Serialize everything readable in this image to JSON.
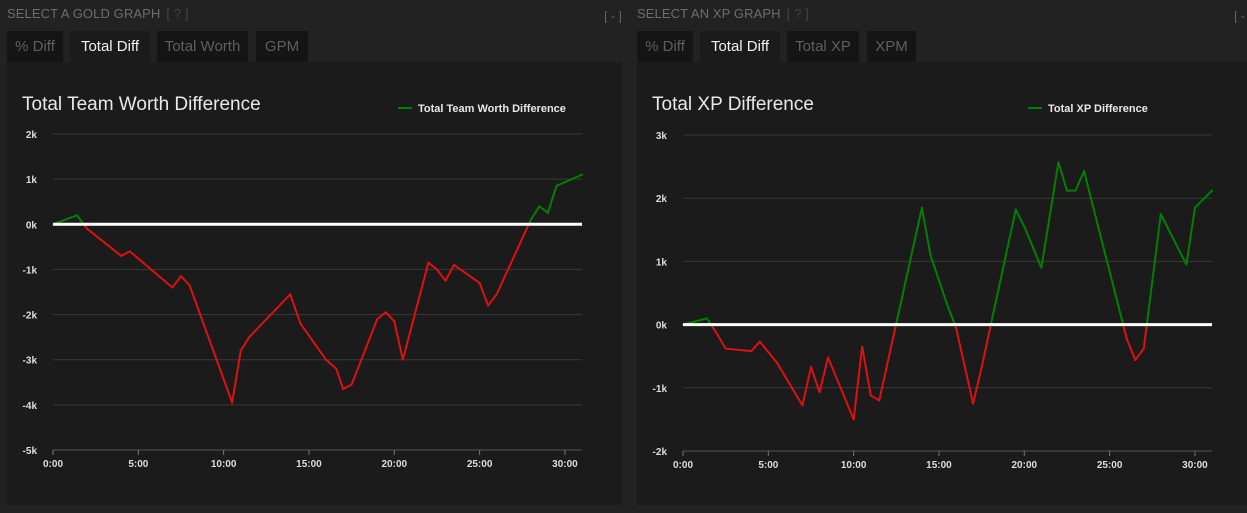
{
  "panels": [
    {
      "header": "SELECT A GOLD GRAPH",
      "help": "[ ? ]",
      "collapse": "[ - ]",
      "tabs": [
        {
          "label": "% Diff",
          "active": false
        },
        {
          "label": "Total Diff",
          "active": true
        },
        {
          "label": "Total Worth",
          "active": false
        },
        {
          "label": "GPM",
          "active": false
        }
      ]
    },
    {
      "header": "SELECT AN XP GRAPH",
      "help": "[ ? ]",
      "collapse": "[ - ]",
      "tabs": [
        {
          "label": "% Diff",
          "active": false
        },
        {
          "label": "Total Diff",
          "active": true
        },
        {
          "label": "Total XP",
          "active": false
        },
        {
          "label": "XPM",
          "active": false
        }
      ]
    }
  ],
  "colors": {
    "positive": "#008000",
    "negative": "#dd1111",
    "zero_line": "#ffffff",
    "grid": "#3a3a3a"
  },
  "chart_data": [
    {
      "type": "line",
      "title": "Total Team Worth Difference",
      "legend": "Total Team Worth Difference",
      "legend_position": "top-right",
      "ylim": [
        -5000,
        2000
      ],
      "xlim": [
        0,
        31
      ],
      "y_ticks": [
        {
          "v": 2000,
          "label": "2k"
        },
        {
          "v": 1000,
          "label": "1k"
        },
        {
          "v": 0,
          "label": "0k"
        },
        {
          "v": -1000,
          "label": "-1k"
        },
        {
          "v": -2000,
          "label": "-2k"
        },
        {
          "v": -3000,
          "label": "-3k"
        },
        {
          "v": -4000,
          "label": "-4k"
        },
        {
          "v": -5000,
          "label": "-5k"
        }
      ],
      "x_ticks": [
        {
          "v": 0,
          "label": "0:00"
        },
        {
          "v": 5,
          "label": "5:00"
        },
        {
          "v": 10,
          "label": "10:00"
        },
        {
          "v": 15,
          "label": "15:00"
        },
        {
          "v": 20,
          "label": "20:00"
        },
        {
          "v": 25,
          "label": "25:00"
        },
        {
          "v": 30,
          "label": "30:00"
        }
      ],
      "grid": true,
      "x": [
        0,
        1.4,
        2,
        4,
        4.5,
        7,
        7.5,
        8,
        10.5,
        11,
        11.5,
        13.9,
        14.5,
        16,
        16.6,
        17,
        17.5,
        19,
        19.5,
        20,
        20.5,
        22,
        22.5,
        23,
        23.5,
        25,
        25.5,
        26,
        28,
        28.5,
        29,
        29.5,
        31
      ],
      "y": [
        0,
        200,
        -100,
        -700,
        -600,
        -1400,
        -1150,
        -1350,
        -3950,
        -2800,
        -2500,
        -1550,
        -2200,
        -3000,
        -3200,
        -3650,
        -3550,
        -2100,
        -1950,
        -2150,
        -3000,
        -850,
        -1000,
        -1250,
        -900,
        -1300,
        -1800,
        -1550,
        100,
        400,
        250,
        850,
        1100
      ]
    },
    {
      "type": "line",
      "title": "Total XP Difference",
      "legend": "Total XP Difference",
      "legend_position": "top-right",
      "ylim": [
        -2000,
        3000
      ],
      "xlim": [
        0,
        31
      ],
      "y_ticks": [
        {
          "v": 3000,
          "label": "3k"
        },
        {
          "v": 2000,
          "label": "2k"
        },
        {
          "v": 1000,
          "label": "1k"
        },
        {
          "v": 0,
          "label": "0k"
        },
        {
          "v": -1000,
          "label": "-1k"
        },
        {
          "v": -2000,
          "label": "-2k"
        }
      ],
      "x_ticks": [
        {
          "v": 0,
          "label": "0:00"
        },
        {
          "v": 5,
          "label": "5:00"
        },
        {
          "v": 10,
          "label": "10:00"
        },
        {
          "v": 15,
          "label": "15:00"
        },
        {
          "v": 20,
          "label": "20:00"
        },
        {
          "v": 25,
          "label": "25:00"
        },
        {
          "v": 30,
          "label": "30:00"
        }
      ],
      "grid": true,
      "x": [
        0,
        1.4,
        2,
        2.5,
        4,
        4.5,
        5.5,
        7,
        7.5,
        8,
        8.5,
        10,
        10.5,
        11,
        11.5,
        14,
        14.5,
        15.5,
        16,
        17,
        17.5,
        18,
        19.5,
        20,
        21,
        22,
        22.5,
        23,
        23.5,
        26,
        26.5,
        27,
        28,
        28.5,
        29.5,
        30,
        31
      ],
      "y": [
        0,
        100,
        -150,
        -380,
        -420,
        -270,
        -600,
        -1280,
        -670,
        -1070,
        -520,
        -1500,
        -350,
        -1120,
        -1200,
        1850,
        1100,
        300,
        -50,
        -1250,
        -680,
        -50,
        1820,
        1550,
        900,
        2570,
        2120,
        2120,
        2430,
        -220,
        -560,
        -380,
        1750,
        1480,
        950,
        1850,
        2120
      ]
    }
  ]
}
